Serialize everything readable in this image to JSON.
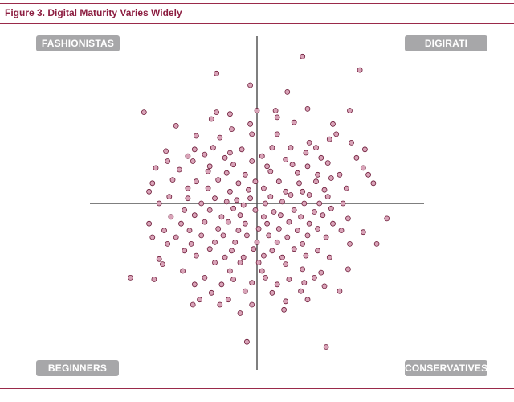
{
  "figure_title": "Figure 3. Digital Maturity Varies Widely",
  "colors": {
    "accent": "#8c1d40",
    "label_bg": "#a7a7a9",
    "point_fill": "#d9a3b8",
    "point_stroke": "#6e1d3a",
    "axis": "#555555"
  },
  "chart_data": {
    "type": "scatter",
    "title": "Figure 3. Digital Maturity Varies Widely",
    "xlabel": "",
    "ylabel": "",
    "xlim": [
      -100,
      100
    ],
    "ylim": [
      -100,
      100
    ],
    "grid": false,
    "legend": "none",
    "quadrant_labels": {
      "top_left": "FASHIONISTAS",
      "top_right": "DIGIRATI",
      "bottom_left": "BEGINNERS",
      "bottom_right": "CONSERVATIVES"
    },
    "points": [
      [
        27,
        87
      ],
      [
        61,
        79
      ],
      [
        -24,
        77
      ],
      [
        -4,
        70
      ],
      [
        18,
        66
      ],
      [
        -67,
        54
      ],
      [
        30,
        56
      ],
      [
        55,
        55
      ],
      [
        -24,
        54
      ],
      [
        -16,
        53
      ],
      [
        0,
        55
      ],
      [
        11,
        55
      ],
      [
        -27,
        50
      ],
      [
        -4,
        47
      ],
      [
        12,
        51
      ],
      [
        45,
        47
      ],
      [
        -48,
        46
      ],
      [
        -15,
        44
      ],
      [
        22,
        48
      ],
      [
        47,
        41
      ],
      [
        -36,
        40
      ],
      [
        -22,
        39
      ],
      [
        -3,
        41
      ],
      [
        12,
        41
      ],
      [
        43,
        38
      ],
      [
        -26,
        33
      ],
      [
        -9,
        32
      ],
      [
        9,
        33
      ],
      [
        31,
        36
      ],
      [
        56,
        36
      ],
      [
        -54,
        31
      ],
      [
        -37,
        32
      ],
      [
        -16,
        30
      ],
      [
        3,
        28
      ],
      [
        20,
        33
      ],
      [
        35,
        33
      ],
      [
        64,
        32
      ],
      [
        -41,
        28
      ],
      [
        -31,
        29
      ],
      [
        -19,
        27
      ],
      [
        -3,
        25
      ],
      [
        17,
        26
      ],
      [
        29,
        30
      ],
      [
        38,
        27
      ],
      [
        59,
        27
      ],
      [
        -53,
        25
      ],
      [
        -38,
        25
      ],
      [
        -28,
        22
      ],
      [
        -14,
        23
      ],
      [
        6,
        22
      ],
      [
        21,
        23
      ],
      [
        30,
        22
      ],
      [
        42,
        24
      ],
      [
        -60,
        21
      ],
      [
        -46,
        20
      ],
      [
        -29,
        19
      ],
      [
        -18,
        18
      ],
      [
        -7,
        17
      ],
      [
        8,
        19
      ],
      [
        24,
        18
      ],
      [
        36,
        17
      ],
      [
        49,
        17
      ],
      [
        63,
        21
      ],
      [
        -50,
        14
      ],
      [
        -36,
        13
      ],
      [
        -23,
        14
      ],
      [
        -11,
        12
      ],
      [
        -1,
        13
      ],
      [
        13,
        13
      ],
      [
        25,
        12
      ],
      [
        35,
        13
      ],
      [
        44,
        15
      ],
      [
        66,
        17
      ],
      [
        -62,
        12
      ],
      [
        -41,
        9
      ],
      [
        -29,
        9
      ],
      [
        -16,
        7
      ],
      [
        -5,
        8
      ],
      [
        4,
        9
      ],
      [
        17,
        7
      ],
      [
        27,
        7
      ],
      [
        40,
        8
      ],
      [
        53,
        9
      ],
      [
        69,
        12
      ],
      [
        -64,
        7
      ],
      [
        -52,
        4
      ],
      [
        -41,
        3
      ],
      [
        -25,
        3
      ],
      [
        -12,
        2
      ],
      [
        -4,
        3
      ],
      [
        8,
        4
      ],
      [
        20,
        5
      ],
      [
        31,
        5
      ],
      [
        42,
        4
      ],
      [
        -58,
        0
      ],
      [
        -33,
        0
      ],
      [
        -18,
        1
      ],
      [
        -8,
        -1
      ],
      [
        5,
        0
      ],
      [
        15,
        1
      ],
      [
        28,
        0
      ],
      [
        37,
        0
      ],
      [
        51,
        0
      ],
      [
        -43,
        -4
      ],
      [
        -28,
        -4
      ],
      [
        -14,
        -3
      ],
      [
        -1,
        -4
      ],
      [
        10,
        -5
      ],
      [
        22,
        -4
      ],
      [
        34,
        -5
      ],
      [
        44,
        -3
      ],
      [
        -51,
        -8
      ],
      [
        -37,
        -7
      ],
      [
        -21,
        -8
      ],
      [
        -10,
        -7
      ],
      [
        4,
        -8
      ],
      [
        14,
        -7
      ],
      [
        26,
        -8
      ],
      [
        39,
        -7
      ],
      [
        54,
        -9
      ],
      [
        77,
        -9
      ],
      [
        -64,
        -12
      ],
      [
        -45,
        -12
      ],
      [
        -31,
        -11
      ],
      [
        -17,
        -11
      ],
      [
        -7,
        -12
      ],
      [
        6,
        -12
      ],
      [
        19,
        -11
      ],
      [
        31,
        -12
      ],
      [
        45,
        -12
      ],
      [
        -55,
        -16
      ],
      [
        -40,
        -16
      ],
      [
        -23,
        -15
      ],
      [
        -11,
        -16
      ],
      [
        1,
        -15
      ],
      [
        13,
        -15
      ],
      [
        24,
        -16
      ],
      [
        36,
        -15
      ],
      [
        50,
        -16
      ],
      [
        63,
        -17
      ],
      [
        -62,
        -20
      ],
      [
        -48,
        -20
      ],
      [
        -33,
        -19
      ],
      [
        -20,
        -19
      ],
      [
        -6,
        -19
      ],
      [
        7,
        -19
      ],
      [
        18,
        -20
      ],
      [
        30,
        -19
      ],
      [
        41,
        -20
      ],
      [
        -53,
        -24
      ],
      [
        -39,
        -24
      ],
      [
        -25,
        -23
      ],
      [
        -13,
        -23
      ],
      [
        0,
        -23
      ],
      [
        12,
        -23
      ],
      [
        27,
        -24
      ],
      [
        55,
        -24
      ],
      [
        71,
        -24
      ],
      [
        -43,
        -28
      ],
      [
        -28,
        -27
      ],
      [
        -15,
        -28
      ],
      [
        -2,
        -27
      ],
      [
        9,
        -28
      ],
      [
        22,
        -27
      ],
      [
        36,
        -28
      ],
      [
        -58,
        -33
      ],
      [
        -36,
        -31
      ],
      [
        -19,
        -32
      ],
      [
        -8,
        -32
      ],
      [
        4,
        -31
      ],
      [
        15,
        -32
      ],
      [
        29,
        -31
      ],
      [
        43,
        -32
      ],
      [
        -56,
        -36
      ],
      [
        -25,
        -35
      ],
      [
        -10,
        -35
      ],
      [
        1,
        -35
      ],
      [
        17,
        -36
      ],
      [
        -44,
        -40
      ],
      [
        -16,
        -40
      ],
      [
        3,
        -40
      ],
      [
        27,
        -39
      ],
      [
        38,
        -41
      ],
      [
        54,
        -39
      ],
      [
        -75,
        -44
      ],
      [
        -61,
        -45
      ],
      [
        -31,
        -44
      ],
      [
        -14,
        -45
      ],
      [
        5,
        -44
      ],
      [
        19,
        -45
      ],
      [
        34,
        -44
      ],
      [
        -37,
        -48
      ],
      [
        -21,
        -48
      ],
      [
        -3,
        -47
      ],
      [
        12,
        -48
      ],
      [
        28,
        -47
      ],
      [
        40,
        -49
      ],
      [
        -27,
        -53
      ],
      [
        -7,
        -52
      ],
      [
        9,
        -53
      ],
      [
        26,
        -52
      ],
      [
        49,
        -52
      ],
      [
        -34,
        -57
      ],
      [
        -17,
        -57
      ],
      [
        -3,
        -60
      ],
      [
        17,
        -58
      ],
      [
        30,
        -57
      ],
      [
        -10,
        -65
      ],
      [
        16,
        -63
      ],
      [
        -6,
        -82
      ],
      [
        41,
        -85
      ],
      [
        -38,
        -60
      ],
      [
        -22,
        -60
      ]
    ]
  }
}
